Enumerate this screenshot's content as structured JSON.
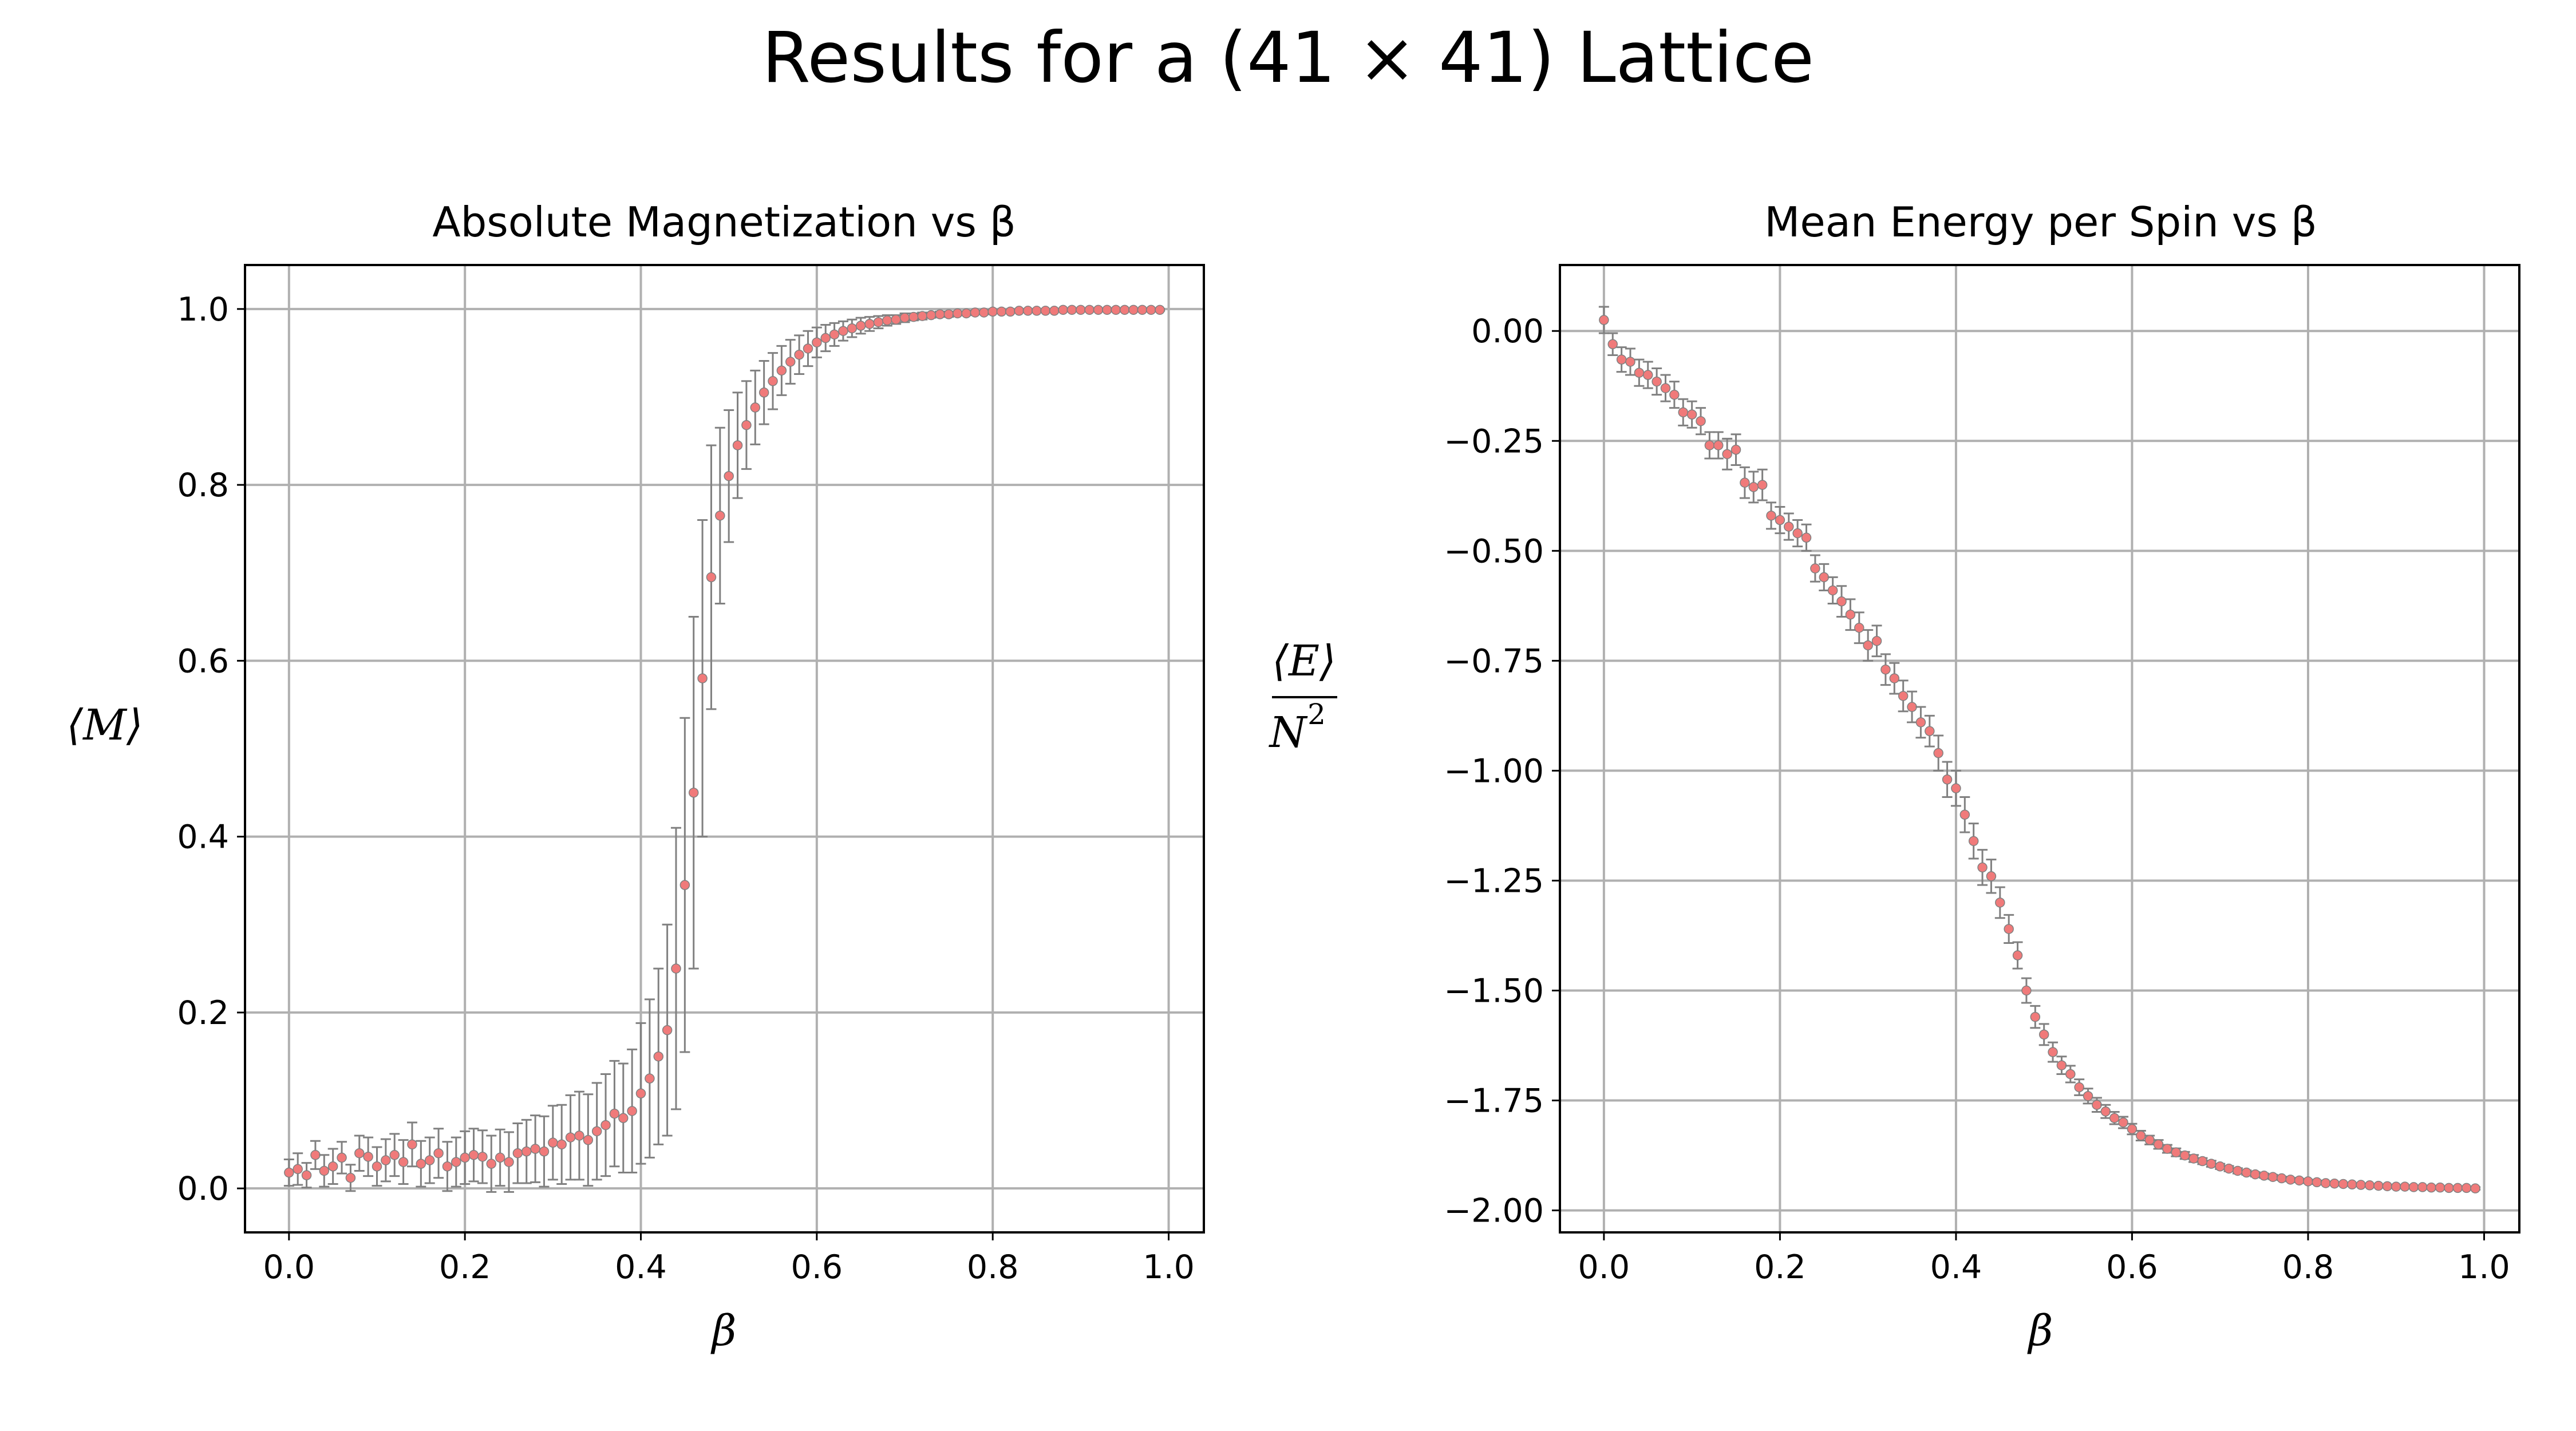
{
  "figure": {
    "title": "Results for a (41 × 41) Lattice"
  },
  "colors": {
    "marker": "#f07a7a",
    "errorbar": "#808080",
    "grid": "#b0b0b0",
    "axes": "#000000"
  },
  "chart_data": [
    {
      "type": "scatter",
      "title": "Absolute Magnetization vs β",
      "xlabel": "β",
      "ylabel": "⟨M⟩",
      "xlim": [
        -0.05,
        1.04
      ],
      "ylim": [
        -0.05,
        1.05
      ],
      "xticks": [
        0.0,
        0.2,
        0.4,
        0.6,
        0.8,
        1.0
      ],
      "xtick_labels": [
        "0.0",
        "0.2",
        "0.4",
        "0.6",
        "0.8",
        "1.0"
      ],
      "yticks": [
        0.0,
        0.2,
        0.4,
        0.6,
        0.8,
        1.0
      ],
      "ytick_labels": [
        "0.0",
        "0.2",
        "0.4",
        "0.6",
        "0.8",
        "1.0"
      ],
      "grid": true,
      "series": [
        {
          "name": "magnetization",
          "x": [
            0.0,
            0.01,
            0.02,
            0.03,
            0.04,
            0.05,
            0.06,
            0.07,
            0.08,
            0.09,
            0.1,
            0.11,
            0.12,
            0.13,
            0.14,
            0.15,
            0.16,
            0.17,
            0.18,
            0.19,
            0.2,
            0.21,
            0.22,
            0.23,
            0.24,
            0.25,
            0.26,
            0.27,
            0.28,
            0.29,
            0.3,
            0.31,
            0.32,
            0.33,
            0.34,
            0.35,
            0.36,
            0.37,
            0.38,
            0.39,
            0.4,
            0.41,
            0.42,
            0.43,
            0.44,
            0.45,
            0.46,
            0.47,
            0.48,
            0.49,
            0.5,
            0.51,
            0.52,
            0.53,
            0.54,
            0.55,
            0.56,
            0.57,
            0.58,
            0.59,
            0.6,
            0.61,
            0.62,
            0.63,
            0.64,
            0.65,
            0.66,
            0.67,
            0.68,
            0.69,
            0.7,
            0.71,
            0.72,
            0.73,
            0.74,
            0.75,
            0.76,
            0.77,
            0.78,
            0.79,
            0.8,
            0.81,
            0.82,
            0.83,
            0.84,
            0.85,
            0.86,
            0.87,
            0.88,
            0.89,
            0.9,
            0.91,
            0.92,
            0.93,
            0.94,
            0.95,
            0.96,
            0.97,
            0.98,
            0.99
          ],
          "y": [
            0.018,
            0.022,
            0.015,
            0.038,
            0.02,
            0.025,
            0.035,
            0.012,
            0.04,
            0.036,
            0.025,
            0.032,
            0.038,
            0.03,
            0.05,
            0.028,
            0.032,
            0.04,
            0.025,
            0.03,
            0.035,
            0.038,
            0.036,
            0.028,
            0.035,
            0.03,
            0.04,
            0.042,
            0.045,
            0.042,
            0.052,
            0.05,
            0.058,
            0.06,
            0.055,
            0.065,
            0.072,
            0.085,
            0.08,
            0.088,
            0.108,
            0.125,
            0.15,
            0.18,
            0.25,
            0.345,
            0.45,
            0.58,
            0.695,
            0.765,
            0.81,
            0.845,
            0.868,
            0.888,
            0.905,
            0.918,
            0.93,
            0.94,
            0.948,
            0.955,
            0.962,
            0.967,
            0.971,
            0.975,
            0.978,
            0.981,
            0.983,
            0.985,
            0.987,
            0.988,
            0.99,
            0.991,
            0.992,
            0.993,
            0.994,
            0.994,
            0.995,
            0.995,
            0.996,
            0.996,
            0.997,
            0.997,
            0.997,
            0.998,
            0.998,
            0.998,
            0.998,
            0.998,
            0.999,
            0.999,
            0.999,
            0.999,
            0.999,
            0.999,
            0.999,
            0.999,
            0.999,
            0.999,
            0.999,
            0.999
          ],
          "yerr": [
            0.015,
            0.018,
            0.014,
            0.016,
            0.018,
            0.02,
            0.018,
            0.015,
            0.02,
            0.022,
            0.022,
            0.024,
            0.024,
            0.025,
            0.025,
            0.026,
            0.026,
            0.028,
            0.028,
            0.028,
            0.03,
            0.03,
            0.03,
            0.032,
            0.032,
            0.034,
            0.034,
            0.036,
            0.038,
            0.04,
            0.042,
            0.045,
            0.048,
            0.05,
            0.052,
            0.055,
            0.058,
            0.06,
            0.062,
            0.07,
            0.08,
            0.09,
            0.1,
            0.12,
            0.16,
            0.19,
            0.2,
            0.18,
            0.15,
            0.1,
            0.075,
            0.06,
            0.05,
            0.042,
            0.036,
            0.032,
            0.028,
            0.025,
            0.022,
            0.02,
            0.017,
            0.015,
            0.013,
            0.011,
            0.01,
            0.009,
            0.008,
            0.007,
            0.006,
            0.005,
            0.005,
            0.004,
            0.004,
            0.003,
            0.003,
            0.003,
            0.002,
            0.002,
            0.002,
            0.002,
            0.002,
            0.001,
            0.001,
            0.001,
            0.001,
            0.001,
            0.001,
            0.001,
            0.001,
            0.001,
            0.001,
            0.001,
            0.001,
            0.001,
            0.001,
            0.001,
            0.001,
            0.001,
            0.001,
            0.001
          ]
        }
      ]
    },
    {
      "type": "scatter",
      "title": "Mean Energy per Spin vs β",
      "xlabel": "β",
      "ylabel_numerator": "⟨E⟩",
      "ylabel_denominator": "N",
      "ylabel_exponent": "2",
      "xlim": [
        -0.05,
        1.04
      ],
      "ylim": [
        -2.05,
        0.15
      ],
      "xticks": [
        0.0,
        0.2,
        0.4,
        0.6,
        0.8,
        1.0
      ],
      "xtick_labels": [
        "0.0",
        "0.2",
        "0.4",
        "0.6",
        "0.8",
        "1.0"
      ],
      "yticks": [
        0.0,
        -0.25,
        -0.5,
        -0.75,
        -1.0,
        -1.25,
        -1.5,
        -1.75,
        -2.0
      ],
      "ytick_labels": [
        "0.00",
        "−0.25",
        "−0.50",
        "−0.75",
        "−1.00",
        "−1.25",
        "−1.50",
        "−1.75",
        "−2.00"
      ],
      "grid": true,
      "series": [
        {
          "name": "energy",
          "x": [
            0.0,
            0.01,
            0.02,
            0.03,
            0.04,
            0.05,
            0.06,
            0.07,
            0.08,
            0.09,
            0.1,
            0.11,
            0.12,
            0.13,
            0.14,
            0.15,
            0.16,
            0.17,
            0.18,
            0.19,
            0.2,
            0.21,
            0.22,
            0.23,
            0.24,
            0.25,
            0.26,
            0.27,
            0.28,
            0.29,
            0.3,
            0.31,
            0.32,
            0.33,
            0.34,
            0.35,
            0.36,
            0.37,
            0.38,
            0.39,
            0.4,
            0.41,
            0.42,
            0.43,
            0.44,
            0.45,
            0.46,
            0.47,
            0.48,
            0.49,
            0.5,
            0.51,
            0.52,
            0.53,
            0.54,
            0.55,
            0.56,
            0.57,
            0.58,
            0.59,
            0.6,
            0.61,
            0.62,
            0.63,
            0.64,
            0.65,
            0.66,
            0.67,
            0.68,
            0.69,
            0.7,
            0.71,
            0.72,
            0.73,
            0.74,
            0.75,
            0.76,
            0.77,
            0.78,
            0.79,
            0.8,
            0.81,
            0.82,
            0.83,
            0.84,
            0.85,
            0.86,
            0.87,
            0.88,
            0.89,
            0.9,
            0.91,
            0.92,
            0.93,
            0.94,
            0.95,
            0.96,
            0.97,
            0.98,
            0.99
          ],
          "y": [
            0.025,
            -0.03,
            -0.065,
            -0.07,
            -0.095,
            -0.1,
            -0.115,
            -0.13,
            -0.145,
            -0.185,
            -0.19,
            -0.205,
            -0.26,
            -0.26,
            -0.28,
            -0.27,
            -0.345,
            -0.355,
            -0.35,
            -0.42,
            -0.43,
            -0.445,
            -0.46,
            -0.47,
            -0.54,
            -0.56,
            -0.59,
            -0.615,
            -0.645,
            -0.675,
            -0.715,
            -0.705,
            -0.77,
            -0.79,
            -0.83,
            -0.855,
            -0.89,
            -0.91,
            -0.96,
            -1.02,
            -1.04,
            -1.1,
            -1.16,
            -1.22,
            -1.24,
            -1.3,
            -1.36,
            -1.42,
            -1.5,
            -1.56,
            -1.6,
            -1.64,
            -1.67,
            -1.69,
            -1.72,
            -1.74,
            -1.76,
            -1.775,
            -1.79,
            -1.8,
            -1.815,
            -1.83,
            -1.84,
            -1.85,
            -1.86,
            -1.868,
            -1.875,
            -1.882,
            -1.888,
            -1.894,
            -1.9,
            -1.905,
            -1.91,
            -1.914,
            -1.918,
            -1.921,
            -1.924,
            -1.927,
            -1.93,
            -1.932,
            -1.934,
            -1.936,
            -1.938,
            -1.939,
            -1.94,
            -1.941,
            -1.942,
            -1.943,
            -1.944,
            -1.945,
            -1.946,
            -1.946,
            -1.947,
            -1.947,
            -1.948,
            -1.948,
            -1.949,
            -1.949,
            -1.949,
            -1.95
          ],
          "yerr": [
            0.03,
            0.025,
            0.028,
            0.03,
            0.03,
            0.03,
            0.03,
            0.03,
            0.03,
            0.03,
            0.03,
            0.03,
            0.03,
            0.03,
            0.035,
            0.035,
            0.035,
            0.035,
            0.035,
            0.03,
            0.03,
            0.03,
            0.03,
            0.03,
            0.03,
            0.03,
            0.03,
            0.035,
            0.035,
            0.035,
            0.035,
            0.035,
            0.035,
            0.035,
            0.035,
            0.035,
            0.035,
            0.035,
            0.04,
            0.04,
            0.04,
            0.04,
            0.04,
            0.04,
            0.038,
            0.035,
            0.032,
            0.03,
            0.028,
            0.025,
            0.024,
            0.022,
            0.02,
            0.019,
            0.018,
            0.017,
            0.016,
            0.015,
            0.014,
            0.013,
            0.012,
            0.011,
            0.01,
            0.01,
            0.009,
            0.009,
            0.008,
            0.008,
            0.007,
            0.007,
            0.006,
            0.006,
            0.006,
            0.005,
            0.005,
            0.005,
            0.005,
            0.004,
            0.004,
            0.004,
            0.004,
            0.004,
            0.003,
            0.003,
            0.003,
            0.003,
            0.003,
            0.003,
            0.003,
            0.003,
            0.003,
            0.003,
            0.003,
            0.003,
            0.003,
            0.003,
            0.003,
            0.003,
            0.003,
            0.003
          ]
        }
      ]
    }
  ]
}
